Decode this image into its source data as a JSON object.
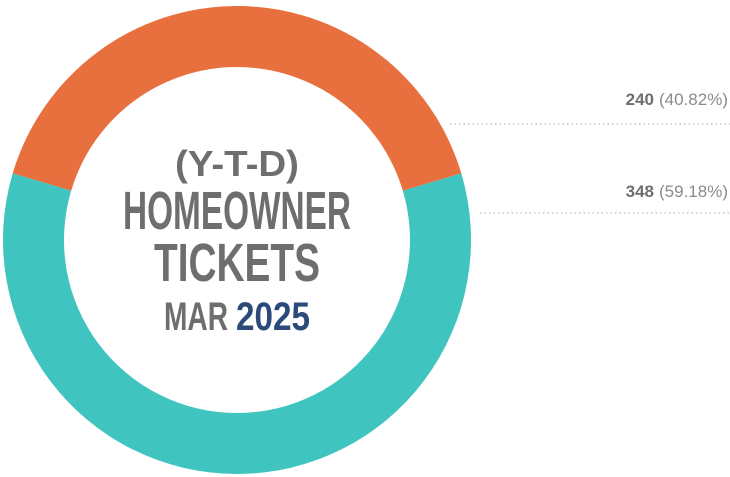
{
  "chart_data": {
    "type": "donut",
    "categories": [
      null,
      null
    ],
    "values": [
      240,
      348
    ],
    "percent_labels": [
      "(40.82%)",
      "(59.18%)"
    ],
    "colors": [
      "#e8703f",
      "#3fc4bf"
    ],
    "title_lines": [
      "(Y-T-D)",
      "HOMEOWNER",
      "TICKETS"
    ],
    "subtitle_month": "MAR",
    "subtitle_year": "2025"
  }
}
